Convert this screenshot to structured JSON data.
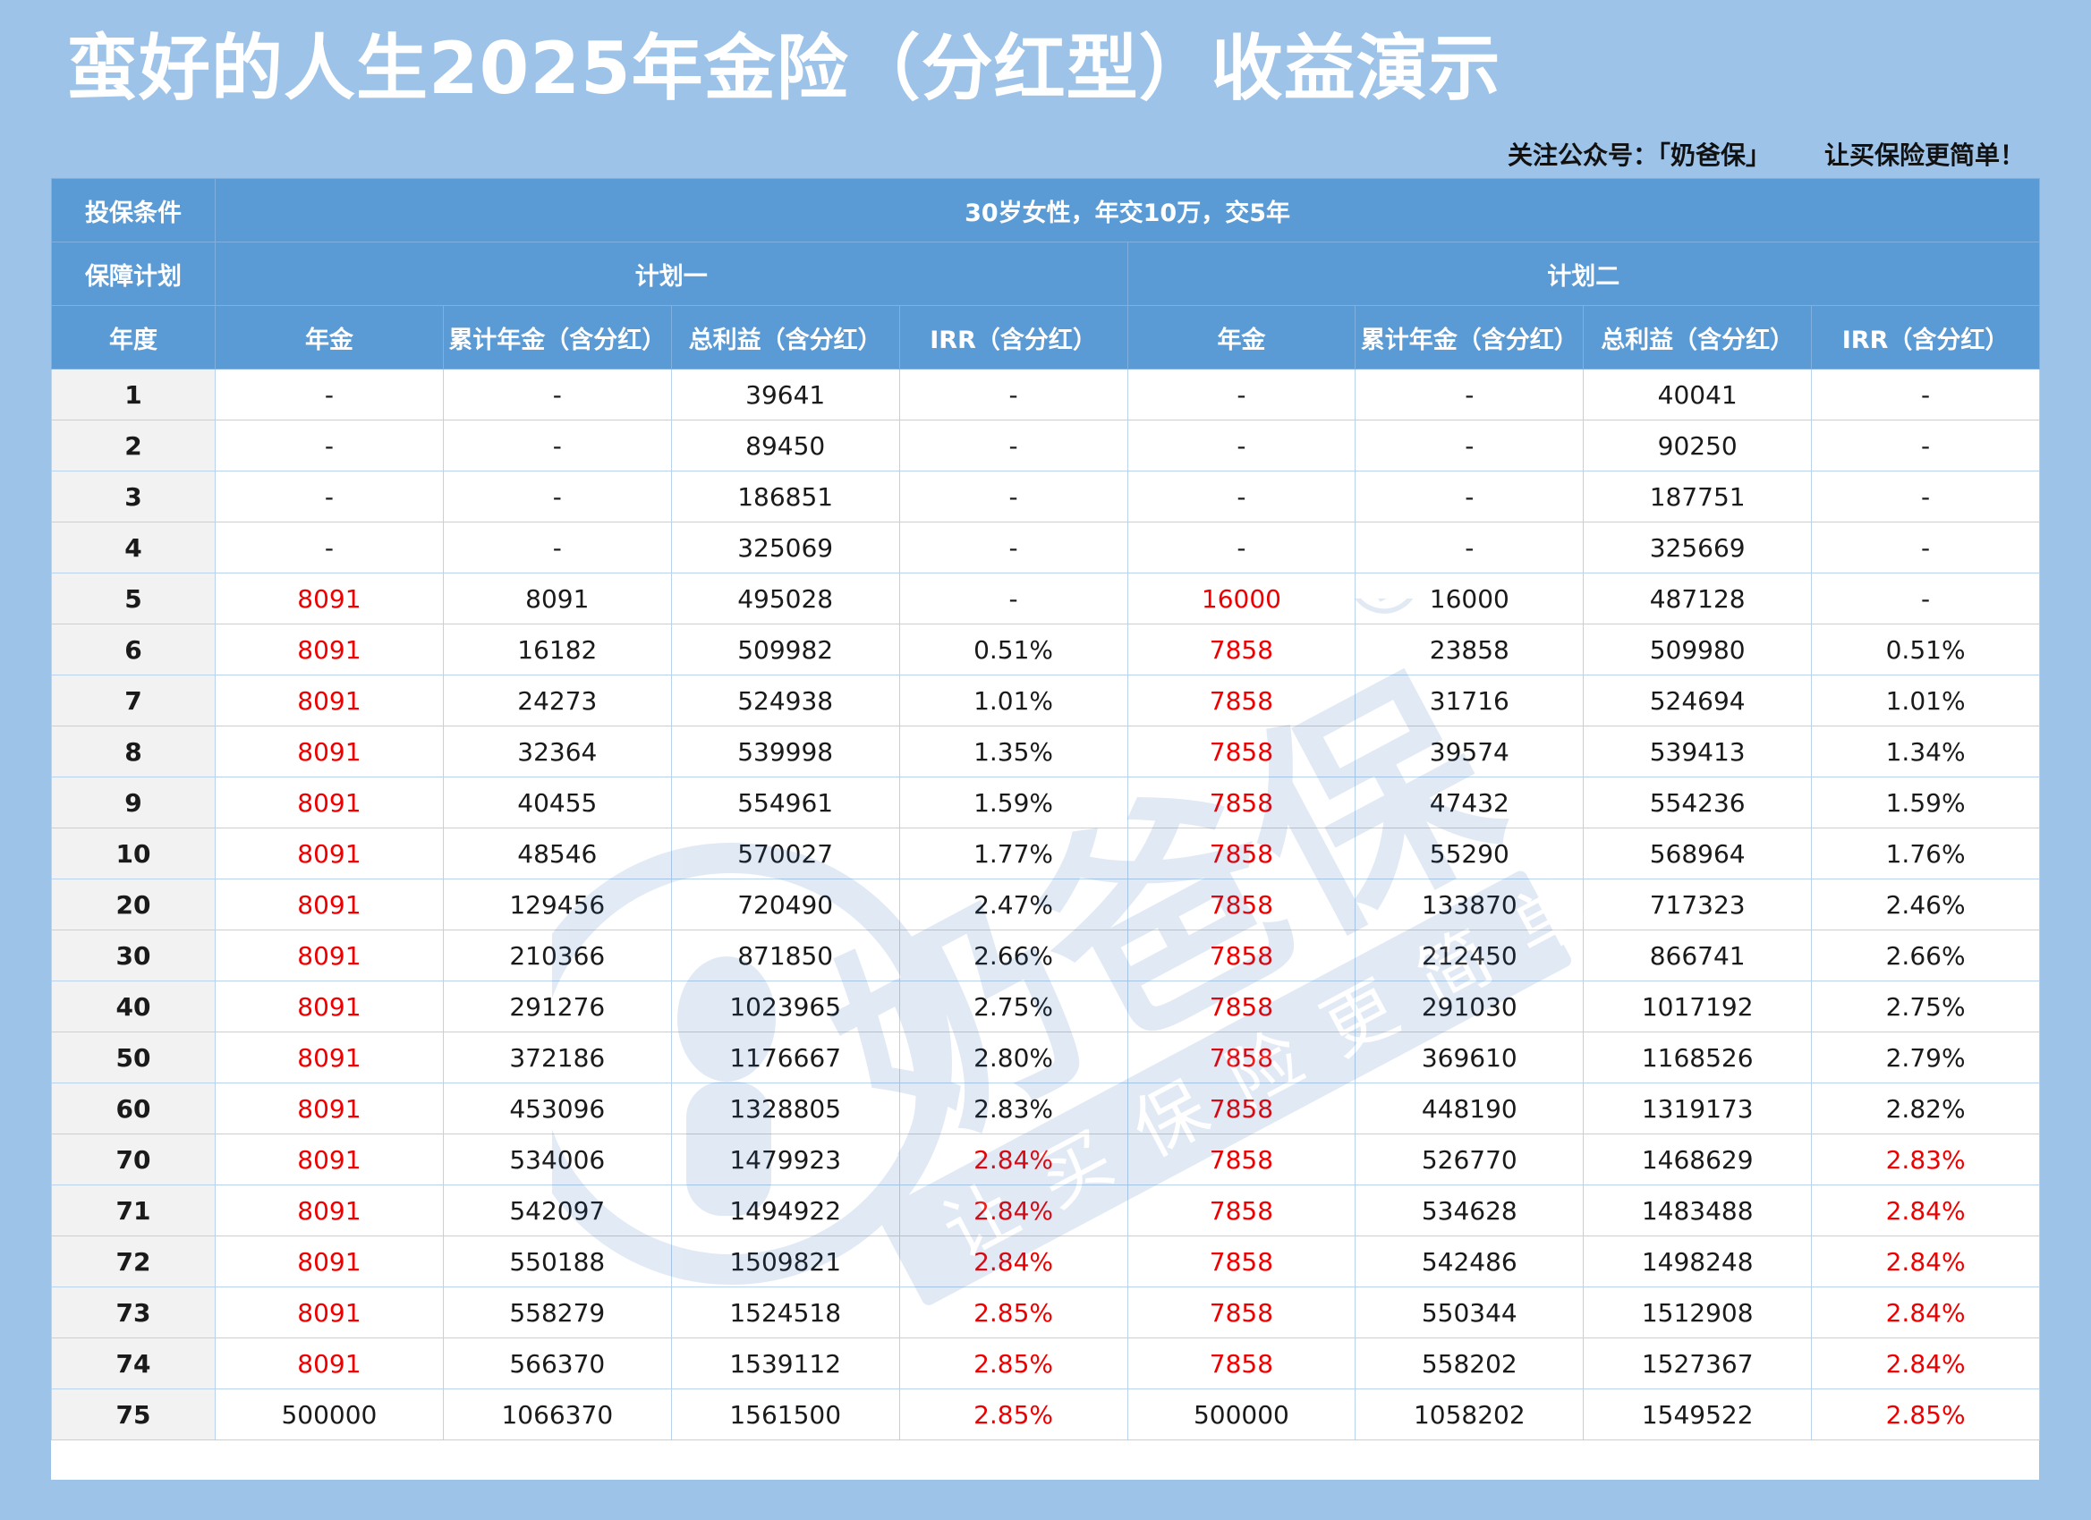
{
  "title": "蛮好的人生2025年金险（分红型）收益演示",
  "follow": {
    "label": "关注公众号：「奶爸保」",
    "slogan": "让买保险更简单！"
  },
  "table": {
    "condition_label": "投保条件",
    "condition_value": "30岁女性，年交10万，交5年",
    "plan_label": "保障计划",
    "plan1": "计划一",
    "plan2": "计划二",
    "col_year": "年度",
    "cols": [
      "年金",
      "累计年金（含分红）",
      "总利益（含分红）",
      "IRR（含分红）",
      "年金",
      "累计年金（含分红）",
      "总利益（含分红）",
      "IRR（含分红）"
    ],
    "rows": [
      [
        "1",
        "-",
        "-",
        "39641",
        "-",
        "-",
        "-",
        "40041",
        "-"
      ],
      [
        "2",
        "-",
        "-",
        "89450",
        "-",
        "-",
        "-",
        "90250",
        "-"
      ],
      [
        "3",
        "-",
        "-",
        "186851",
        "-",
        "-",
        "-",
        "187751",
        "-"
      ],
      [
        "4",
        "-",
        "-",
        "325069",
        "-",
        "-",
        "-",
        "325669",
        "-"
      ],
      [
        "5",
        "8091",
        "8091",
        "495028",
        "-",
        "16000",
        "16000",
        "487128",
        "-"
      ],
      [
        "6",
        "8091",
        "16182",
        "509982",
        "0.51%",
        "7858",
        "23858",
        "509980",
        "0.51%"
      ],
      [
        "7",
        "8091",
        "24273",
        "524938",
        "1.01%",
        "7858",
        "31716",
        "524694",
        "1.01%"
      ],
      [
        "8",
        "8091",
        "32364",
        "539998",
        "1.35%",
        "7858",
        "39574",
        "539413",
        "1.34%"
      ],
      [
        "9",
        "8091",
        "40455",
        "554961",
        "1.59%",
        "7858",
        "47432",
        "554236",
        "1.59%"
      ],
      [
        "10",
        "8091",
        "48546",
        "570027",
        "1.77%",
        "7858",
        "55290",
        "568964",
        "1.76%"
      ],
      [
        "20",
        "8091",
        "129456",
        "720490",
        "2.47%",
        "7858",
        "133870",
        "717323",
        "2.46%"
      ],
      [
        "30",
        "8091",
        "210366",
        "871850",
        "2.66%",
        "7858",
        "212450",
        "866741",
        "2.66%"
      ],
      [
        "40",
        "8091",
        "291276",
        "1023965",
        "2.75%",
        "7858",
        "291030",
        "1017192",
        "2.75%"
      ],
      [
        "50",
        "8091",
        "372186",
        "1176667",
        "2.80%",
        "7858",
        "369610",
        "1168526",
        "2.79%"
      ],
      [
        "60",
        "8091",
        "453096",
        "1328805",
        "2.83%",
        "7858",
        "448190",
        "1319173",
        "2.82%"
      ],
      [
        "70",
        "8091",
        "534006",
        "1479923",
        "2.84%",
        "7858",
        "526770",
        "1468629",
        "2.83%"
      ],
      [
        "71",
        "8091",
        "542097",
        "1494922",
        "2.84%",
        "7858",
        "534628",
        "1483488",
        "2.84%"
      ],
      [
        "72",
        "8091",
        "550188",
        "1509821",
        "2.84%",
        "7858",
        "542486",
        "1498248",
        "2.84%"
      ],
      [
        "73",
        "8091",
        "558279",
        "1524518",
        "2.85%",
        "7858",
        "550344",
        "1512908",
        "2.84%"
      ],
      [
        "74",
        "8091",
        "566370",
        "1539112",
        "2.85%",
        "7858",
        "558202",
        "1527367",
        "2.84%"
      ],
      [
        "75",
        "500000",
        "1066370",
        "1561500",
        "2.85%",
        "500000",
        "1058202",
        "1549522",
        "2.85%"
      ]
    ],
    "red_cells": [
      [
        4,
        1
      ],
      [
        4,
        5
      ],
      [
        5,
        1
      ],
      [
        5,
        5
      ],
      [
        6,
        1
      ],
      [
        6,
        5
      ],
      [
        7,
        1
      ],
      [
        7,
        5
      ],
      [
        8,
        1
      ],
      [
        8,
        5
      ],
      [
        9,
        1
      ],
      [
        9,
        5
      ],
      [
        10,
        1
      ],
      [
        10,
        5
      ],
      [
        11,
        1
      ],
      [
        11,
        5
      ],
      [
        12,
        1
      ],
      [
        12,
        5
      ],
      [
        13,
        1
      ],
      [
        13,
        5
      ],
      [
        14,
        1
      ],
      [
        14,
        5
      ],
      [
        15,
        1
      ],
      [
        15,
        4
      ],
      [
        15,
        5
      ],
      [
        15,
        8
      ],
      [
        16,
        1
      ],
      [
        16,
        4
      ],
      [
        16,
        5
      ],
      [
        16,
        8
      ],
      [
        17,
        1
      ],
      [
        17,
        4
      ],
      [
        17,
        5
      ],
      [
        17,
        8
      ],
      [
        18,
        1
      ],
      [
        18,
        4
      ],
      [
        18,
        5
      ],
      [
        18,
        8
      ],
      [
        19,
        1
      ],
      [
        19,
        4
      ],
      [
        19,
        5
      ],
      [
        19,
        8
      ],
      [
        20,
        4
      ],
      [
        20,
        8
      ]
    ]
  },
  "watermark": {
    "brand": "奶爸保",
    "tagline": "让买保险更简单",
    "registered": "®"
  },
  "colors": {
    "background": "#9ec3e8",
    "header": "#5b9bd5",
    "highlight": "#ee0000"
  }
}
